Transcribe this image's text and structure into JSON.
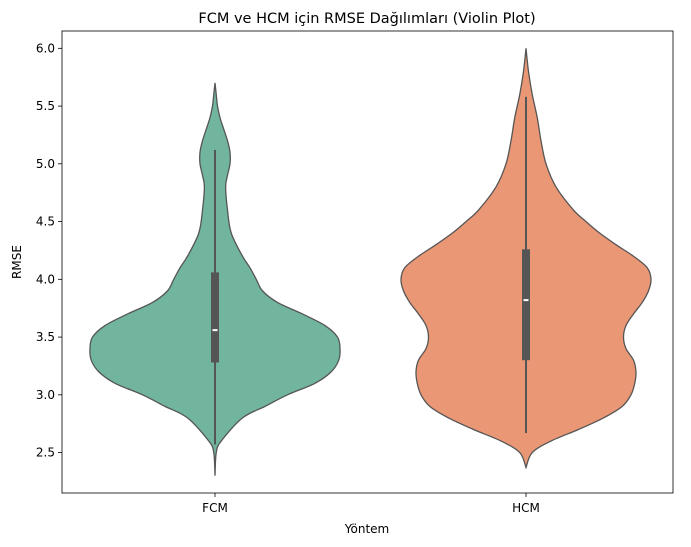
{
  "chart_data": {
    "type": "violin",
    "title": "FCM ve HCM için RMSE Dağılımları (Violin Plot)",
    "xlabel": "Yöntem",
    "ylabel": "RMSE",
    "categories": [
      "FCM",
      "HCM"
    ],
    "ylim": [
      2.15,
      6.15
    ],
    "yticks": [
      "2.5",
      "3.0",
      "3.5",
      "4.0",
      "4.5",
      "5.0",
      "5.5",
      "6.0"
    ],
    "grid": false,
    "legend": "none",
    "series": [
      {
        "category": "FCM",
        "color": "#71b59f",
        "range": [
          2.3,
          5.7
        ],
        "whisker": [
          2.57,
          5.12
        ],
        "q1": 3.28,
        "median": 3.56,
        "q3": 4.06,
        "density": [
          [
            2.3,
            0.0
          ],
          [
            2.5,
            0.01
          ],
          [
            2.6,
            0.05
          ],
          [
            2.8,
            0.22
          ],
          [
            2.9,
            0.4
          ],
          [
            3.0,
            0.58
          ],
          [
            3.1,
            0.8
          ],
          [
            3.2,
            0.93
          ],
          [
            3.3,
            0.99
          ],
          [
            3.4,
            1.0
          ],
          [
            3.5,
            0.98
          ],
          [
            3.6,
            0.88
          ],
          [
            3.7,
            0.7
          ],
          [
            3.8,
            0.5
          ],
          [
            3.9,
            0.38
          ],
          [
            4.0,
            0.33
          ],
          [
            4.1,
            0.28
          ],
          [
            4.2,
            0.22
          ],
          [
            4.4,
            0.13
          ],
          [
            4.6,
            0.1
          ],
          [
            4.8,
            0.085
          ],
          [
            4.9,
            0.1
          ],
          [
            5.0,
            0.12
          ],
          [
            5.1,
            0.12
          ],
          [
            5.2,
            0.1
          ],
          [
            5.3,
            0.07
          ],
          [
            5.4,
            0.04
          ],
          [
            5.5,
            0.02
          ],
          [
            5.6,
            0.01
          ],
          [
            5.7,
            0.0
          ]
        ]
      },
      {
        "category": "HCM",
        "color": "#e99775",
        "range": [
          2.37,
          6.0
        ],
        "whisker": [
          2.67,
          5.58
        ],
        "q1": 3.3,
        "median": 3.82,
        "q3": 4.26,
        "density": [
          [
            2.37,
            0.0
          ],
          [
            2.5,
            0.05
          ],
          [
            2.6,
            0.2
          ],
          [
            2.7,
            0.42
          ],
          [
            2.8,
            0.62
          ],
          [
            2.9,
            0.77
          ],
          [
            3.0,
            0.84
          ],
          [
            3.1,
            0.87
          ],
          [
            3.2,
            0.88
          ],
          [
            3.3,
            0.86
          ],
          [
            3.4,
            0.8
          ],
          [
            3.5,
            0.78
          ],
          [
            3.6,
            0.8
          ],
          [
            3.7,
            0.86
          ],
          [
            3.8,
            0.93
          ],
          [
            3.9,
            0.98
          ],
          [
            4.0,
            1.0
          ],
          [
            4.1,
            0.97
          ],
          [
            4.2,
            0.86
          ],
          [
            4.3,
            0.72
          ],
          [
            4.4,
            0.59
          ],
          [
            4.5,
            0.48
          ],
          [
            4.6,
            0.38
          ],
          [
            4.8,
            0.24
          ],
          [
            5.0,
            0.16
          ],
          [
            5.2,
            0.12
          ],
          [
            5.4,
            0.09
          ],
          [
            5.6,
            0.05
          ],
          [
            5.8,
            0.02
          ],
          [
            6.0,
            0.0
          ]
        ]
      }
    ]
  }
}
